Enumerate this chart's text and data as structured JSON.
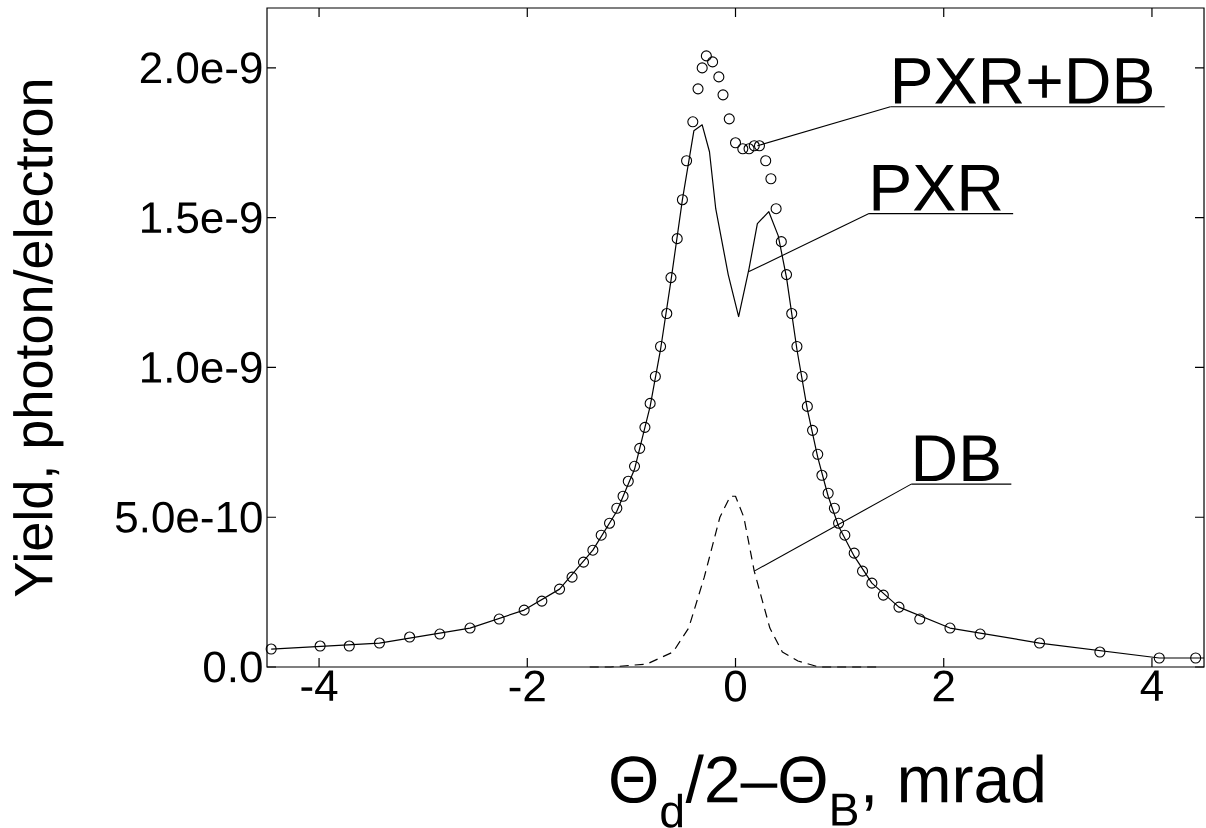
{
  "chart_data": {
    "type": "scatter",
    "xlabel": "Θ$_{d}$/2–Θ$_{B}$, mrad",
    "ylabel": "Yield, photon/electron",
    "xlim": [
      -4.5,
      4.5
    ],
    "ylim": [
      0,
      2.2e-09
    ],
    "xticks": [
      -4,
      -2,
      0,
      2,
      4
    ],
    "yticks": [
      {
        "value": 0,
        "label": "0.0"
      },
      {
        "value": 5e-10,
        "label": "5.0e-10"
      },
      {
        "value": 1e-09,
        "label": "1.0e-9"
      },
      {
        "value": 1.5e-09,
        "label": "1.5e-9"
      },
      {
        "value": 2e-09,
        "label": "2.0e-9"
      }
    ],
    "series": [
      {
        "type": "scatter",
        "marker": "circle",
        "color": "#000000",
        "x": [
          -4.46,
          -3.99,
          -3.71,
          -3.42,
          -3.13,
          -2.84,
          -2.55,
          -2.27,
          -2.03,
          -1.86,
          -1.69,
          -1.57,
          -1.46,
          -1.37,
          -1.29,
          -1.21,
          -1.14,
          -1.08,
          -1.03,
          -0.97,
          -0.92,
          -0.87,
          -0.82,
          -0.77,
          -0.72,
          -0.66,
          -0.62,
          -0.56,
          -0.51,
          -0.47,
          -0.41,
          -0.36,
          -0.32,
          -0.28,
          -0.22,
          -0.16,
          -0.12,
          -0.06,
          0.0,
          0.07,
          0.13,
          0.18,
          0.23,
          0.29,
          0.34,
          0.39,
          0.44,
          0.49,
          0.54,
          0.59,
          0.64,
          0.69,
          0.74,
          0.79,
          0.83,
          0.89,
          0.95,
          0.99,
          1.05,
          1.14,
          1.22,
          1.31,
          1.42,
          1.57,
          1.77,
          2.06,
          2.35,
          2.92,
          3.5,
          4.07,
          4.42
        ],
        "values": [
          6e-11,
          7e-11,
          7e-11,
          8e-11,
          1e-10,
          1.1e-10,
          1.3e-10,
          1.6e-10,
          1.9e-10,
          2.2e-10,
          2.6e-10,
          3e-10,
          3.5e-10,
          3.9e-10,
          4.4e-10,
          4.8e-10,
          5.3e-10,
          5.7e-10,
          6.2e-10,
          6.7e-10,
          7.3e-10,
          8e-10,
          8.8e-10,
          9.7e-10,
          1.07e-09,
          1.18e-09,
          1.3e-09,
          1.43e-09,
          1.56e-09,
          1.69e-09,
          1.82e-09,
          1.93e-09,
          2e-09,
          2.04e-09,
          2.02e-09,
          1.97e-09,
          1.91e-09,
          1.83e-09,
          1.75e-09,
          1.73e-09,
          1.73e-09,
          1.74e-09,
          1.74e-09,
          1.69e-09,
          1.63e-09,
          1.53e-09,
          1.42e-09,
          1.31e-09,
          1.18e-09,
          1.07e-09,
          9.7e-10,
          8.7e-10,
          7.9e-10,
          7.1e-10,
          6.4e-10,
          5.8e-10,
          5.3e-10,
          4.8e-10,
          4.4e-10,
          3.8e-10,
          3.2e-10,
          2.8e-10,
          2.4e-10,
          2e-10,
          1.6e-10,
          1.3e-10,
          1.1e-10,
          8e-11,
          5e-11,
          3e-11,
          3e-11
        ]
      },
      {
        "type": "line",
        "line_style": "solid",
        "color": "#000000",
        "x": [
          -4.46,
          -3.42,
          -2.55,
          -2.03,
          -1.69,
          -1.37,
          -1.14,
          -0.97,
          -0.82,
          -0.72,
          -0.62,
          -0.51,
          -0.4,
          -0.32,
          -0.25,
          -0.19,
          -0.07,
          0.03,
          0.13,
          0.21,
          0.32,
          0.41,
          0.49,
          0.59,
          0.69,
          0.79,
          0.89,
          0.99,
          1.14,
          1.31,
          1.57,
          2.06,
          2.92,
          4.07,
          4.5
        ],
        "values": [
          6e-11,
          8e-11,
          1.3e-10,
          1.9e-10,
          2.6e-10,
          3.9e-10,
          5.2e-10,
          6.6e-10,
          8.7e-10,
          1.06e-09,
          1.29e-09,
          1.56e-09,
          1.79e-09,
          1.81e-09,
          1.72e-09,
          1.53e-09,
          1.31e-09,
          1.17e-09,
          1.33e-09,
          1.48e-09,
          1.52e-09,
          1.44e-09,
          1.3e-09,
          1.06e-09,
          8.6e-10,
          7e-10,
          5.7e-10,
          4.7e-10,
          3.7e-10,
          2.8e-10,
          2e-10,
          1.3e-10,
          8e-11,
          3e-11,
          3e-11
        ]
      },
      {
        "type": "line",
        "line_style": "dashed",
        "color": "#000000",
        "x": [
          -1.4,
          -1.2,
          -0.85,
          -0.6,
          -0.45,
          -0.3,
          -0.15,
          -0.05,
          0.0,
          0.08,
          0.18,
          0.33,
          0.45,
          0.6,
          0.8,
          1.2,
          1.4
        ],
        "values": [
          0,
          0,
          1e-11,
          5e-11,
          1.3e-10,
          3e-10,
          5e-10,
          5.7e-10,
          5.7e-10,
          5e-10,
          3.2e-10,
          1.3e-10,
          5e-11,
          2e-11,
          0,
          0,
          0
        ]
      }
    ],
    "annotations": [
      {
        "text": "PXR+DB",
        "x": 0.21,
        "y": 1.74e-09
      },
      {
        "text": "PXR",
        "x": 0.13,
        "y": 1.32e-09
      },
      {
        "text": "DB",
        "x": 0.18,
        "y": 3.2e-10
      }
    ]
  }
}
